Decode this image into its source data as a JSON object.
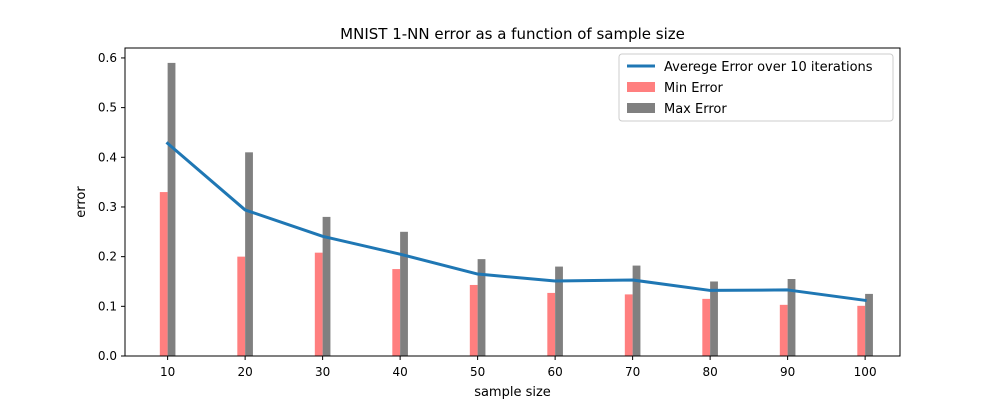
{
  "chart_data": {
    "type": "bar",
    "title": "MNIST 1-NN error as a function of sample size",
    "xlabel": "sample size",
    "ylabel": "error",
    "x": [
      10,
      20,
      30,
      40,
      50,
      60,
      70,
      80,
      90,
      100
    ],
    "ylim": [
      0,
      0.62
    ],
    "yticks": [
      0.0,
      0.1,
      0.2,
      0.3,
      0.4,
      0.5,
      0.6
    ],
    "legend_position": "top-right",
    "grid": false,
    "series": [
      {
        "name": "Averege Error over 10 iterations",
        "type": "line",
        "color": "#1f77b4",
        "values": [
          0.428,
          0.294,
          0.241,
          0.205,
          0.165,
          0.151,
          0.153,
          0.132,
          0.133,
          0.112
        ]
      },
      {
        "name": "Min Error",
        "type": "bar",
        "color": "#ff7f7f",
        "values": [
          0.33,
          0.2,
          0.208,
          0.175,
          0.143,
          0.127,
          0.124,
          0.115,
          0.103,
          0.101
        ]
      },
      {
        "name": "Max Error",
        "type": "bar",
        "color": "#808080",
        "values": [
          0.59,
          0.41,
          0.28,
          0.25,
          0.195,
          0.18,
          0.182,
          0.15,
          0.155,
          0.125
        ]
      }
    ]
  }
}
